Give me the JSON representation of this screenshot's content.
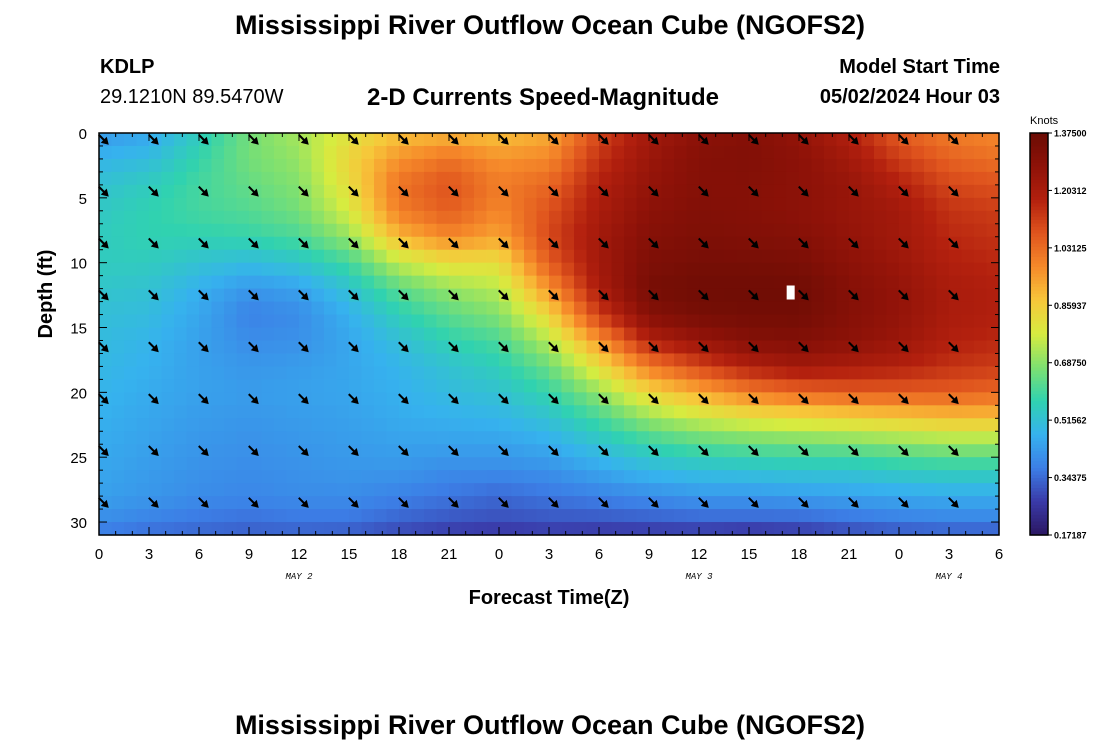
{
  "header": {
    "title": "Mississippi River Outflow Ocean Cube (NGOFS2)",
    "station": "KDLP",
    "coords": "29.1210N  89.5470W",
    "variable": "2-D Currents Speed-Magnitude",
    "model_start_label": "Model Start Time",
    "model_start_value": "05/02/2024 Hour 03"
  },
  "footer": {
    "title": "Mississippi River Outflow Ocean Cube (NGOFS2)"
  },
  "chart_data": {
    "type": "heatmap",
    "title": "2-D Currents Speed-Magnitude",
    "xlabel": "Forecast Time(Z)",
    "ylabel": "Depth (ft)",
    "x_range_hours": [
      0,
      54
    ],
    "y_range_ft": [
      0,
      31
    ],
    "y_inverted": true,
    "x_tick_labels": [
      "0",
      "3",
      "6",
      "9",
      "12",
      "15",
      "18",
      "21",
      "0",
      "3",
      "6",
      "9",
      "12",
      "15",
      "18",
      "21",
      "0",
      "3",
      "6"
    ],
    "y_ticks": [
      0,
      5,
      10,
      15,
      20,
      25,
      30
    ],
    "date_labels": [
      {
        "text": "MAY 2",
        "hour": 12
      },
      {
        "text": "MAY 3",
        "hour": 36
      },
      {
        "text": "MAY 4",
        "hour": 51
      }
    ],
    "colorbar": {
      "title": "Knots",
      "min": 0.17187,
      "max": 1.375,
      "tick_labels": [
        "1.37500",
        "1.20312",
        "1.03125",
        "0.85937",
        "0.68750",
        "0.51562",
        "0.34375",
        "0.17187"
      ],
      "colors": [
        "#2b1762",
        "#3a3aa8",
        "#3c7ee6",
        "#36b2ee",
        "#30d2b0",
        "#7ee070",
        "#d6ec40",
        "#f7c73a",
        "#f68a2a",
        "#e0551e",
        "#b3200e",
        "#8e1208",
        "#6b0c04"
      ]
    },
    "max_marker": {
      "hour": 41.5,
      "depth_ft": 12.3
    },
    "arrow_hours": [
      0,
      3,
      6,
      9,
      12,
      15,
      18,
      21,
      24,
      27,
      30,
      33,
      36,
      39,
      42,
      45,
      48,
      51
    ],
    "arrow_depths_ft": [
      0,
      4,
      8,
      12,
      16,
      20,
      24,
      28
    ],
    "arrow_direction_deg": 135,
    "depths_ft": [
      0,
      2,
      4,
      6,
      8,
      10,
      12,
      14,
      16,
      18,
      20,
      22,
      24,
      26,
      28,
      30,
      31
    ],
    "speed_rows": [
      {
        "hour": 0,
        "values": [
          0.42,
          0.48,
          0.52,
          0.54,
          0.55,
          0.55,
          0.53,
          0.51,
          0.5,
          0.49,
          0.48,
          0.47,
          0.46,
          0.45,
          0.44,
          0.4,
          0.36
        ]
      },
      {
        "hour": 3,
        "values": [
          0.45,
          0.5,
          0.55,
          0.57,
          0.57,
          0.55,
          0.52,
          0.5,
          0.48,
          0.47,
          0.46,
          0.45,
          0.44,
          0.43,
          0.42,
          0.38,
          0.34
        ]
      },
      {
        "hour": 6,
        "values": [
          0.55,
          0.58,
          0.6,
          0.6,
          0.57,
          0.52,
          0.47,
          0.45,
          0.44,
          0.44,
          0.44,
          0.43,
          0.42,
          0.41,
          0.4,
          0.36,
          0.33
        ]
      },
      {
        "hour": 9,
        "values": [
          0.66,
          0.66,
          0.64,
          0.62,
          0.58,
          0.5,
          0.42,
          0.38,
          0.4,
          0.42,
          0.43,
          0.42,
          0.41,
          0.4,
          0.39,
          0.35,
          0.32
        ]
      },
      {
        "hour": 12,
        "values": [
          0.72,
          0.7,
          0.68,
          0.66,
          0.61,
          0.53,
          0.44,
          0.4,
          0.41,
          0.43,
          0.44,
          0.43,
          0.42,
          0.41,
          0.4,
          0.36,
          0.32
        ]
      },
      {
        "hour": 15,
        "values": [
          0.8,
          0.84,
          0.82,
          0.78,
          0.7,
          0.6,
          0.52,
          0.47,
          0.45,
          0.45,
          0.45,
          0.44,
          0.43,
          0.42,
          0.4,
          0.36,
          0.31
        ]
      },
      {
        "hour": 18,
        "values": [
          0.88,
          0.96,
          1.02,
          1.0,
          0.9,
          0.75,
          0.63,
          0.56,
          0.51,
          0.48,
          0.47,
          0.46,
          0.44,
          0.42,
          0.38,
          0.33,
          0.28
        ]
      },
      {
        "hour": 21,
        "values": [
          0.9,
          1.02,
          1.08,
          1.06,
          0.98,
          0.82,
          0.7,
          0.63,
          0.57,
          0.52,
          0.5,
          0.47,
          0.44,
          0.4,
          0.36,
          0.31,
          0.26
        ]
      },
      {
        "hour": 24,
        "values": [
          0.88,
          0.96,
          1.0,
          0.98,
          0.93,
          0.82,
          0.74,
          0.68,
          0.61,
          0.56,
          0.52,
          0.48,
          0.44,
          0.4,
          0.34,
          0.3,
          0.25
        ]
      },
      {
        "hour": 27,
        "values": [
          0.92,
          0.98,
          1.04,
          1.08,
          1.1,
          1.06,
          0.96,
          0.84,
          0.74,
          0.65,
          0.58,
          0.52,
          0.46,
          0.41,
          0.36,
          0.31,
          0.26
        ]
      },
      {
        "hour": 30,
        "values": [
          1.1,
          1.14,
          1.18,
          1.2,
          1.22,
          1.22,
          1.2,
          1.12,
          0.96,
          0.82,
          0.7,
          0.6,
          0.52,
          0.45,
          0.38,
          0.31,
          0.25
        ]
      },
      {
        "hour": 33,
        "values": [
          1.22,
          1.24,
          1.26,
          1.28,
          1.3,
          1.32,
          1.34,
          1.3,
          1.18,
          1.0,
          0.84,
          0.7,
          0.58,
          0.49,
          0.4,
          0.32,
          0.25
        ]
      },
      {
        "hour": 36,
        "values": [
          1.28,
          1.3,
          1.3,
          1.31,
          1.32,
          1.34,
          1.36,
          1.34,
          1.25,
          1.1,
          0.92,
          0.76,
          0.62,
          0.51,
          0.42,
          0.33,
          0.25
        ]
      },
      {
        "hour": 39,
        "values": [
          1.3,
          1.31,
          1.3,
          1.3,
          1.31,
          1.34,
          1.36,
          1.35,
          1.3,
          1.18,
          1.0,
          0.8,
          0.64,
          0.52,
          0.42,
          0.33,
          0.23
        ]
      },
      {
        "hour": 42,
        "values": [
          1.26,
          1.28,
          1.28,
          1.28,
          1.3,
          1.33,
          1.36,
          1.35,
          1.31,
          1.22,
          1.04,
          0.82,
          0.65,
          0.53,
          0.43,
          0.33,
          0.25
        ]
      },
      {
        "hour": 45,
        "values": [
          1.18,
          1.22,
          1.25,
          1.25,
          1.26,
          1.28,
          1.3,
          1.3,
          1.28,
          1.2,
          1.06,
          0.84,
          0.66,
          0.53,
          0.44,
          0.35,
          0.28
        ]
      },
      {
        "hour": 48,
        "values": [
          1.06,
          1.12,
          1.18,
          1.22,
          1.22,
          1.24,
          1.26,
          1.26,
          1.24,
          1.18,
          1.06,
          0.86,
          0.68,
          0.55,
          0.45,
          0.37,
          0.3
        ]
      },
      {
        "hour": 51,
        "values": [
          1.0,
          1.05,
          1.1,
          1.14,
          1.16,
          1.18,
          1.2,
          1.2,
          1.18,
          1.14,
          1.06,
          0.88,
          0.7,
          0.56,
          0.46,
          0.38,
          0.31
        ]
      },
      {
        "hour": 54,
        "values": [
          0.98,
          1.02,
          1.08,
          1.12,
          1.14,
          1.16,
          1.18,
          1.18,
          1.16,
          1.12,
          1.04,
          0.88,
          0.7,
          0.56,
          0.46,
          0.38,
          0.31
        ]
      }
    ]
  }
}
